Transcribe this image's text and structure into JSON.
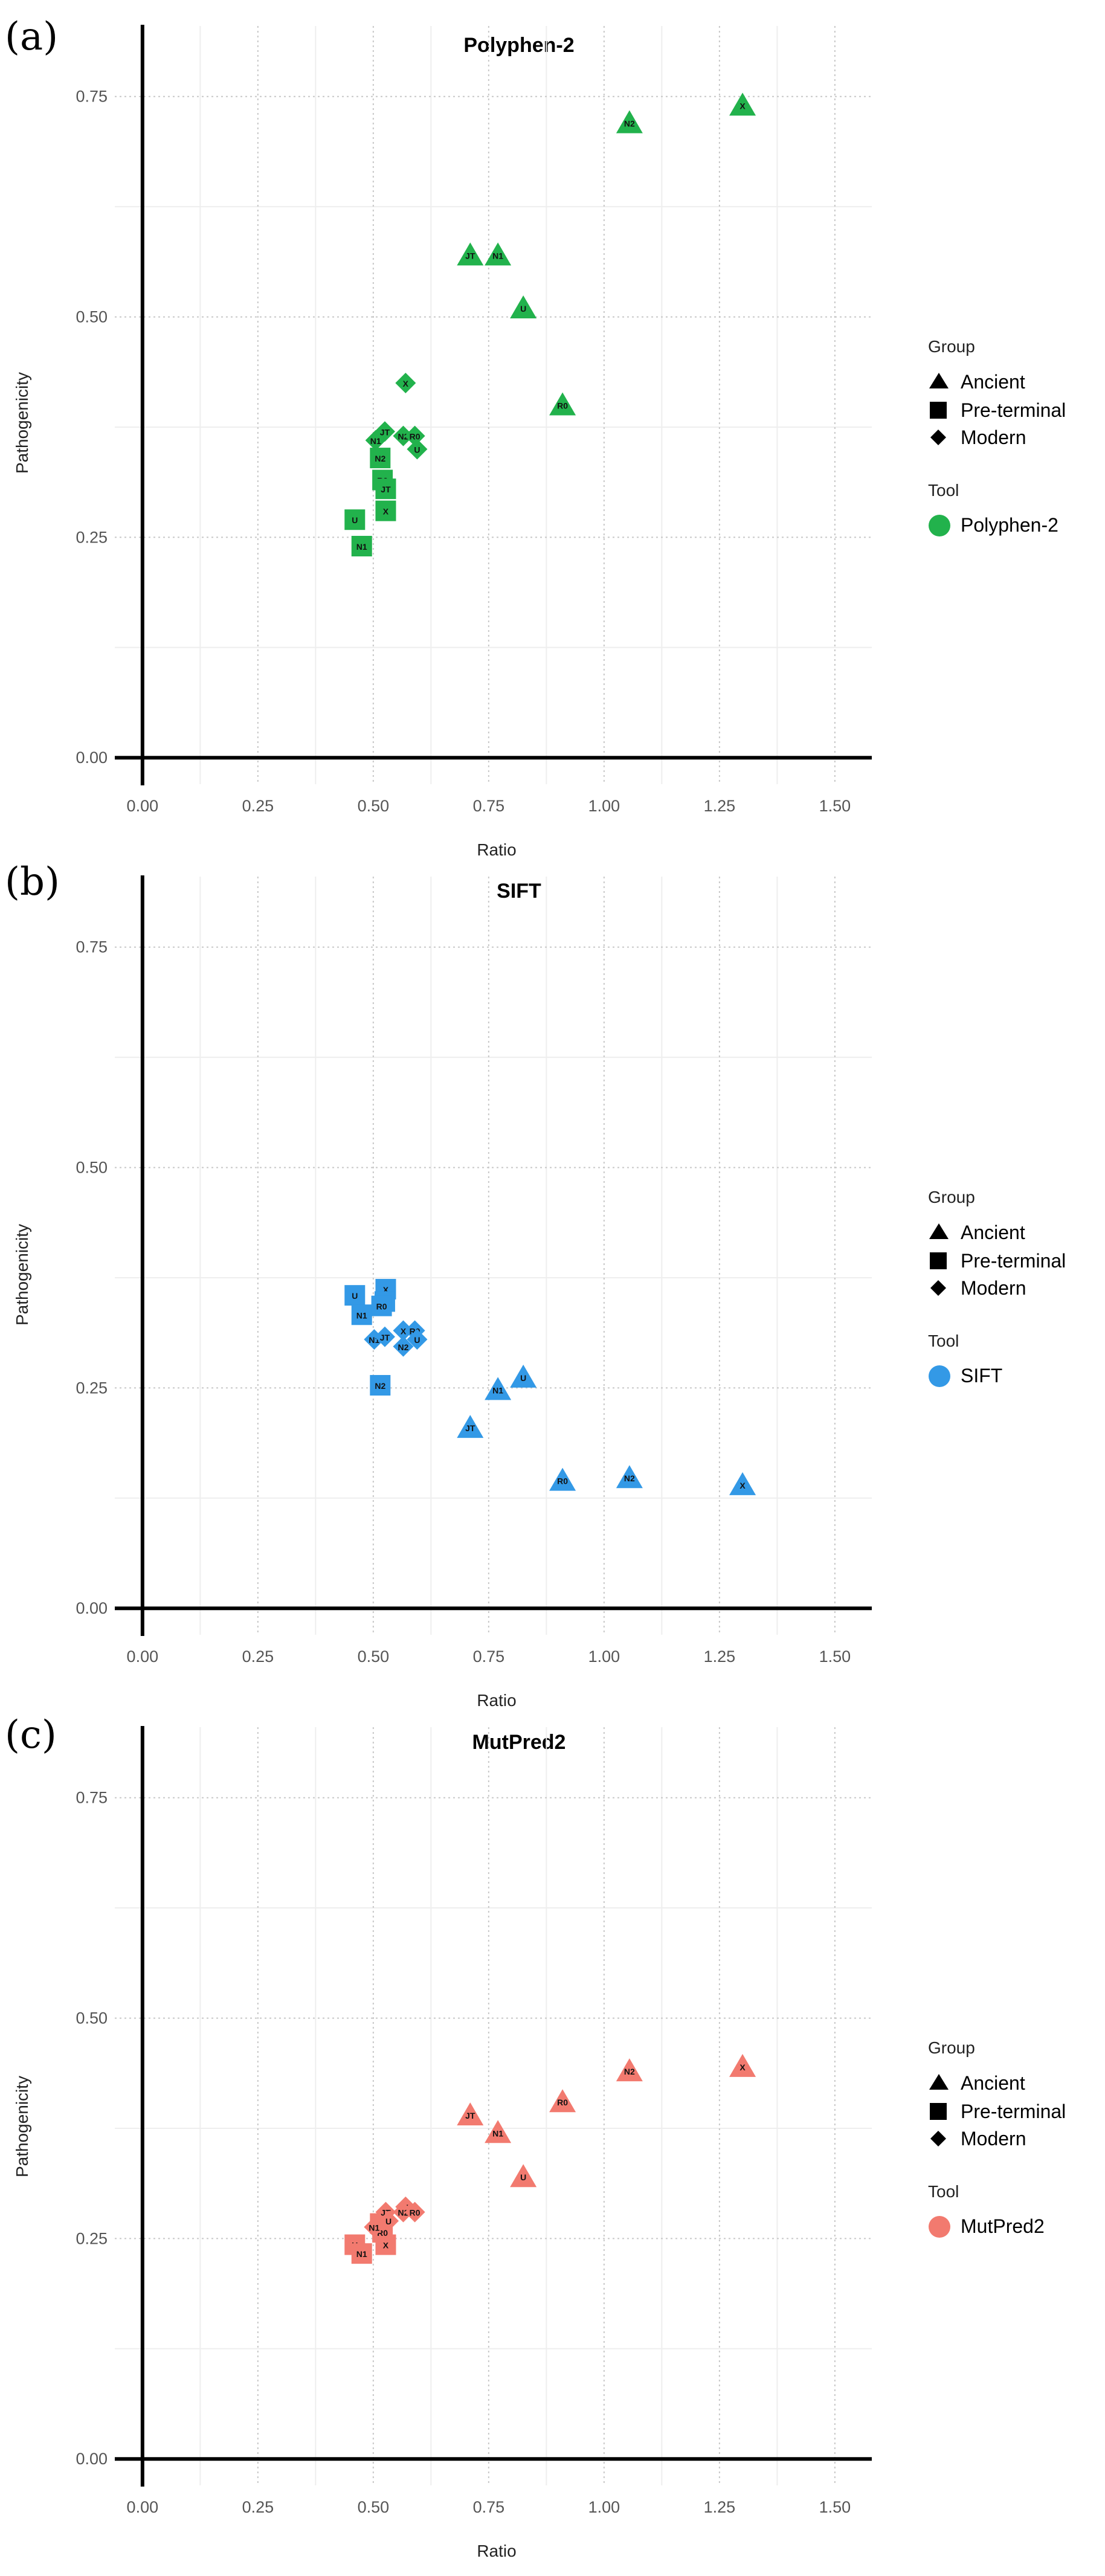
{
  "chart_data": [
    {
      "type": "scatter",
      "panel_label": "(a)",
      "title": "Polyphen-2",
      "xlabel": "Ratio",
      "ylabel": "Pathogenicity",
      "xlim": [
        -0.06,
        1.58
      ],
      "ylim": [
        -0.03,
        0.83
      ],
      "x_ticks": [
        "0.00",
        "0.25",
        "0.50",
        "0.75",
        "1.00",
        "1.25",
        "1.50"
      ],
      "y_ticks": [
        "0.00",
        "0.25",
        "0.50",
        "0.75"
      ],
      "grid": true,
      "color": "#22b24c",
      "legend_placement": "right",
      "legend": {
        "group_title": "Group",
        "groups": [
          "Ancient",
          "Pre-terminal",
          "Modern"
        ],
        "tool_title": "Tool",
        "tool": "Polyphen-2"
      },
      "points": [
        {
          "label": "X",
          "x": 1.3,
          "y": 0.74,
          "group": "Ancient"
        },
        {
          "label": "N2",
          "x": 1.055,
          "y": 0.72,
          "group": "Ancient"
        },
        {
          "label": "JT",
          "x": 0.71,
          "y": 0.57,
          "group": "Ancient"
        },
        {
          "label": "N1",
          "x": 0.77,
          "y": 0.57,
          "group": "Ancient"
        },
        {
          "label": "U",
          "x": 0.825,
          "y": 0.51,
          "group": "Ancient"
        },
        {
          "label": "R0",
          "x": 0.91,
          "y": 0.4,
          "group": "Ancient"
        },
        {
          "label": "U",
          "x": 0.46,
          "y": 0.27,
          "group": "Pre-terminal"
        },
        {
          "label": "N1",
          "x": 0.475,
          "y": 0.24,
          "group": "Pre-terminal"
        },
        {
          "label": "N2",
          "x": 0.515,
          "y": 0.34,
          "group": "Pre-terminal"
        },
        {
          "label": "R0",
          "x": 0.52,
          "y": 0.315,
          "group": "Pre-terminal"
        },
        {
          "label": "JT",
          "x": 0.527,
          "y": 0.305,
          "group": "Pre-terminal"
        },
        {
          "label": "X",
          "x": 0.527,
          "y": 0.28,
          "group": "Pre-terminal"
        },
        {
          "label": "X",
          "x": 0.57,
          "y": 0.425,
          "group": "Modern"
        },
        {
          "label": "JT",
          "x": 0.525,
          "y": 0.37,
          "group": "Modern"
        },
        {
          "label": "N1",
          "x": 0.505,
          "y": 0.36,
          "group": "Modern"
        },
        {
          "label": "N2",
          "x": 0.565,
          "y": 0.365,
          "group": "Modern"
        },
        {
          "label": "R0",
          "x": 0.59,
          "y": 0.365,
          "group": "Modern"
        },
        {
          "label": "U",
          "x": 0.595,
          "y": 0.35,
          "group": "Modern"
        }
      ]
    },
    {
      "type": "scatter",
      "panel_label": "(b)",
      "title": "SIFT",
      "xlabel": "Ratio",
      "ylabel": "Pathogenicity",
      "xlim": [
        -0.06,
        1.58
      ],
      "ylim": [
        -0.03,
        0.83
      ],
      "x_ticks": [
        "0.00",
        "0.25",
        "0.50",
        "0.75",
        "1.00",
        "1.25",
        "1.50"
      ],
      "y_ticks": [
        "0.00",
        "0.25",
        "0.50",
        "0.75"
      ],
      "grid": true,
      "color": "#3399e6",
      "legend_placement": "right",
      "legend": {
        "group_title": "Group",
        "groups": [
          "Ancient",
          "Pre-terminal",
          "Modern"
        ],
        "tool_title": "Tool",
        "tool": "SIFT"
      },
      "points": [
        {
          "label": "X",
          "x": 1.3,
          "y": 0.14,
          "group": "Ancient"
        },
        {
          "label": "N2",
          "x": 1.055,
          "y": 0.148,
          "group": "Ancient"
        },
        {
          "label": "R0",
          "x": 0.91,
          "y": 0.145,
          "group": "Ancient"
        },
        {
          "label": "U",
          "x": 0.825,
          "y": 0.262,
          "group": "Ancient"
        },
        {
          "label": "N1",
          "x": 0.77,
          "y": 0.248,
          "group": "Ancient"
        },
        {
          "label": "JT",
          "x": 0.71,
          "y": 0.205,
          "group": "Ancient"
        },
        {
          "label": "U",
          "x": 0.46,
          "y": 0.355,
          "group": "Pre-terminal"
        },
        {
          "label": "N1",
          "x": 0.475,
          "y": 0.333,
          "group": "Pre-terminal"
        },
        {
          "label": "X",
          "x": 0.527,
          "y": 0.362,
          "group": "Pre-terminal"
        },
        {
          "label": "JT",
          "x": 0.525,
          "y": 0.348,
          "group": "Pre-terminal"
        },
        {
          "label": "R0",
          "x": 0.518,
          "y": 0.343,
          "group": "Pre-terminal"
        },
        {
          "label": "N2",
          "x": 0.515,
          "y": 0.253,
          "group": "Pre-terminal"
        },
        {
          "label": "N1",
          "x": 0.502,
          "y": 0.305,
          "group": "Modern"
        },
        {
          "label": "JT",
          "x": 0.525,
          "y": 0.308,
          "group": "Modern"
        },
        {
          "label": "X",
          "x": 0.565,
          "y": 0.315,
          "group": "Modern"
        },
        {
          "label": "R0",
          "x": 0.59,
          "y": 0.315,
          "group": "Modern"
        },
        {
          "label": "U",
          "x": 0.595,
          "y": 0.305,
          "group": "Modern"
        },
        {
          "label": "N2",
          "x": 0.565,
          "y": 0.297,
          "group": "Modern"
        }
      ]
    },
    {
      "type": "scatter",
      "panel_label": "(c)",
      "title": "MutPred2",
      "xlabel": "Ratio",
      "ylabel": "Pathogenicity",
      "xlim": [
        -0.06,
        1.58
      ],
      "ylim": [
        -0.03,
        0.83
      ],
      "x_ticks": [
        "0.00",
        "0.25",
        "0.50",
        "0.75",
        "1.00",
        "1.25",
        "1.50"
      ],
      "y_ticks": [
        "0.00",
        "0.25",
        "0.50",
        "0.75"
      ],
      "grid": true,
      "color": "#f27a6f",
      "legend_placement": "right",
      "legend": {
        "group_title": "Group",
        "groups": [
          "Ancient",
          "Pre-terminal",
          "Modern"
        ],
        "tool_title": "Tool",
        "tool": "MutPred2"
      },
      "points": [
        {
          "label": "X",
          "x": 1.3,
          "y": 0.445,
          "group": "Ancient"
        },
        {
          "label": "N2",
          "x": 1.055,
          "y": 0.44,
          "group": "Ancient"
        },
        {
          "label": "R0",
          "x": 0.91,
          "y": 0.405,
          "group": "Ancient"
        },
        {
          "label": "JT",
          "x": 0.71,
          "y": 0.39,
          "group": "Ancient"
        },
        {
          "label": "N1",
          "x": 0.77,
          "y": 0.37,
          "group": "Ancient"
        },
        {
          "label": "U",
          "x": 0.825,
          "y": 0.32,
          "group": "Ancient"
        },
        {
          "label": "U",
          "x": 0.46,
          "y": 0.243,
          "group": "Pre-terminal"
        },
        {
          "label": "N1",
          "x": 0.475,
          "y": 0.233,
          "group": "Pre-terminal"
        },
        {
          "label": "X",
          "x": 0.527,
          "y": 0.243,
          "group": "Pre-terminal"
        },
        {
          "label": "N2",
          "x": 0.515,
          "y": 0.267,
          "group": "Pre-terminal"
        },
        {
          "label": "R0",
          "x": 0.52,
          "y": 0.257,
          "group": "Pre-terminal"
        },
        {
          "label": "JT",
          "x": 0.527,
          "y": 0.28,
          "group": "Modern"
        },
        {
          "label": "N1",
          "x": 0.502,
          "y": 0.263,
          "group": "Modern"
        },
        {
          "label": "X",
          "x": 0.57,
          "y": 0.286,
          "group": "Modern"
        },
        {
          "label": "N2",
          "x": 0.565,
          "y": 0.28,
          "group": "Modern"
        },
        {
          "label": "R0",
          "x": 0.59,
          "y": 0.28,
          "group": "Modern"
        },
        {
          "label": "U",
          "x": 0.533,
          "y": 0.27,
          "group": "Modern"
        }
      ]
    }
  ]
}
